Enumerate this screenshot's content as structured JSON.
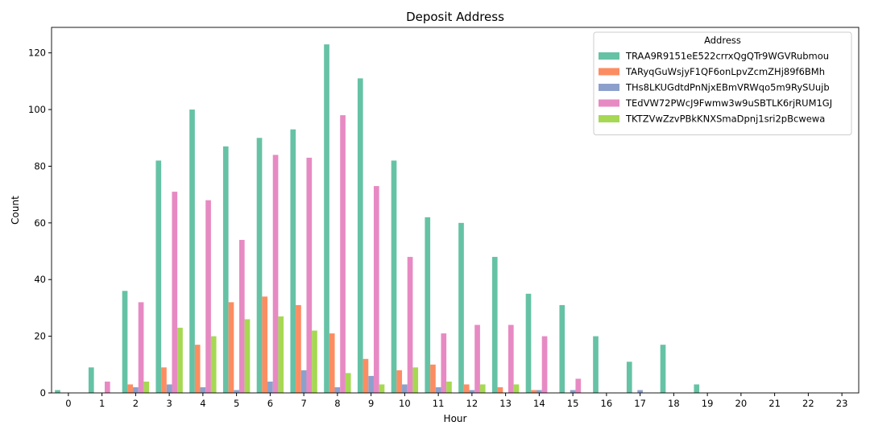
{
  "chart_data": {
    "type": "bar",
    "title": "Deposit Address",
    "xlabel": "Hour",
    "ylabel": "Count",
    "ylim": [
      0,
      129
    ],
    "yticks": [
      0,
      20,
      40,
      60,
      80,
      100,
      120
    ],
    "grid": false,
    "legend": {
      "title": "Address",
      "placement": "top-right"
    },
    "categories": [
      "0",
      "1",
      "2",
      "3",
      "4",
      "5",
      "6",
      "7",
      "8",
      "9",
      "10",
      "11",
      "12",
      "13",
      "14",
      "15",
      "16",
      "17",
      "18",
      "19",
      "20",
      "21",
      "22",
      "23"
    ],
    "series": [
      {
        "name": "TRAA9R9151eE522crrxQgQTr9WGVRubmou",
        "color": "#66c2a5",
        "values": [
          1,
          9,
          36,
          82,
          100,
          87,
          90,
          93,
          123,
          111,
          82,
          62,
          60,
          48,
          35,
          31,
          20,
          11,
          17,
          3,
          0,
          0,
          0,
          0
        ]
      },
      {
        "name": "TARyqGuWsjyF1QF6onLpvZcmZHj89f6BMh",
        "color": "#fc8d62",
        "values": [
          0,
          0,
          3,
          9,
          17,
          32,
          34,
          31,
          21,
          12,
          8,
          10,
          3,
          2,
          1,
          0,
          0,
          0,
          0,
          0,
          0,
          0,
          0,
          0
        ]
      },
      {
        "name": "THs8LKUGdtdPnNjxEBmVRWqo5m9RySUujb",
        "color": "#8da0cb",
        "values": [
          0,
          0,
          2,
          3,
          2,
          1,
          4,
          8,
          2,
          6,
          3,
          2,
          1,
          0,
          1,
          1,
          0,
          1,
          0,
          0,
          0,
          0,
          0,
          0
        ]
      },
      {
        "name": "TEdVW72PWcJ9Fwmw3w9uSBTLK6rjRUM1GJ",
        "color": "#e78ac3",
        "values": [
          0,
          4,
          32,
          71,
          68,
          54,
          84,
          83,
          98,
          73,
          48,
          21,
          24,
          24,
          20,
          5,
          0,
          0,
          0,
          0,
          0,
          0,
          0,
          0
        ]
      },
      {
        "name": "TKTZVwZzvPBkKNXSmaDpnj1sri2pBcwewa",
        "color": "#a6d854",
        "values": [
          0,
          0,
          4,
          23,
          20,
          26,
          27,
          22,
          7,
          3,
          9,
          4,
          3,
          3,
          0,
          0,
          0,
          0,
          0,
          0,
          0,
          0,
          0,
          0
        ]
      }
    ]
  }
}
